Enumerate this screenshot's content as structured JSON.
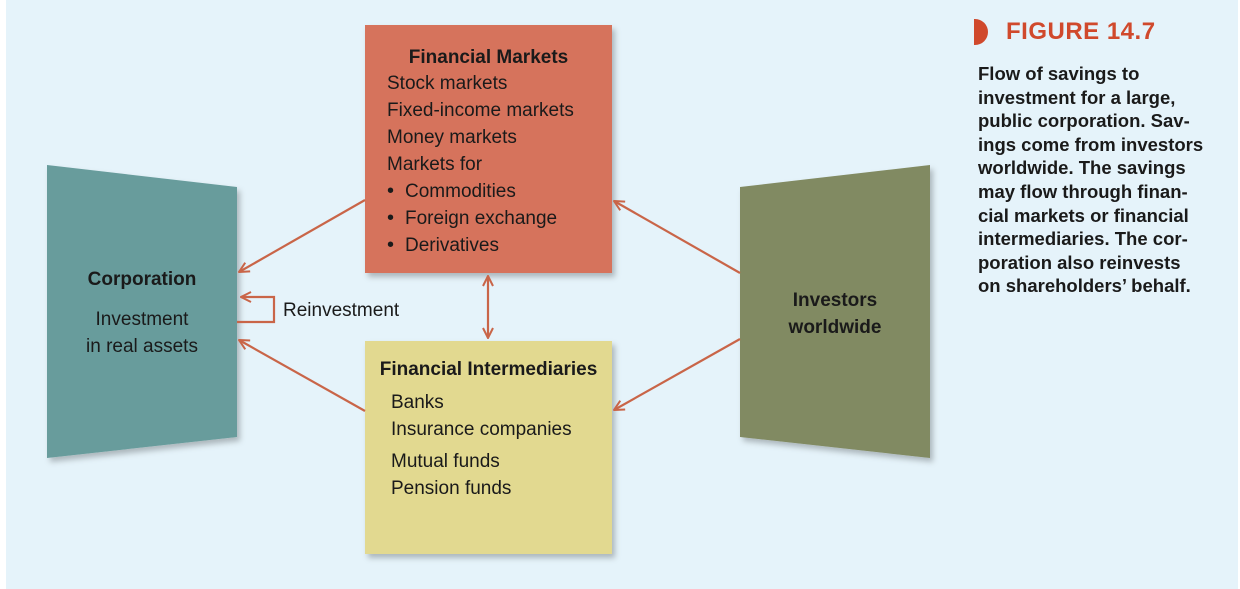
{
  "figure": {
    "label": "FIGURE 14.7",
    "caption_lines": [
      "Flow of savings to",
      "investment for a large,",
      "public corporation. Sav-",
      "ings come from investors",
      "worldwide. The savings",
      "may flow through finan-",
      "cial markets or financial",
      "intermediaries. The cor-",
      "poration also reinvests",
      "on shareholders’ behalf."
    ]
  },
  "diagram": {
    "corporation": {
      "title": "Corporation",
      "line1": "Investment",
      "line2": "in real assets"
    },
    "reinvestment_label": "Reinvestment",
    "financial_markets": {
      "title": "Financial Markets",
      "lines": [
        "Stock markets",
        "Fixed-income markets",
        "Money markets",
        "Markets for"
      ],
      "bullets": [
        "Commodities",
        "Foreign exchange",
        "Derivatives"
      ]
    },
    "financial_intermediaries": {
      "title": "Financial Intermediaries",
      "lines": [
        "Banks",
        "Insurance companies",
        "Mutual funds",
        "Pension funds"
      ]
    },
    "investors": {
      "line1": "Investors",
      "line2": "worldwide"
    }
  },
  "colors": {
    "background": "#e5f3fa",
    "corporation": "#679c9c",
    "financial_markets": "#d6735b",
    "financial_intermediaries": "#e2d990",
    "investors": "#818a62",
    "arrow": "#c96548",
    "accent": "#d0492c"
  }
}
